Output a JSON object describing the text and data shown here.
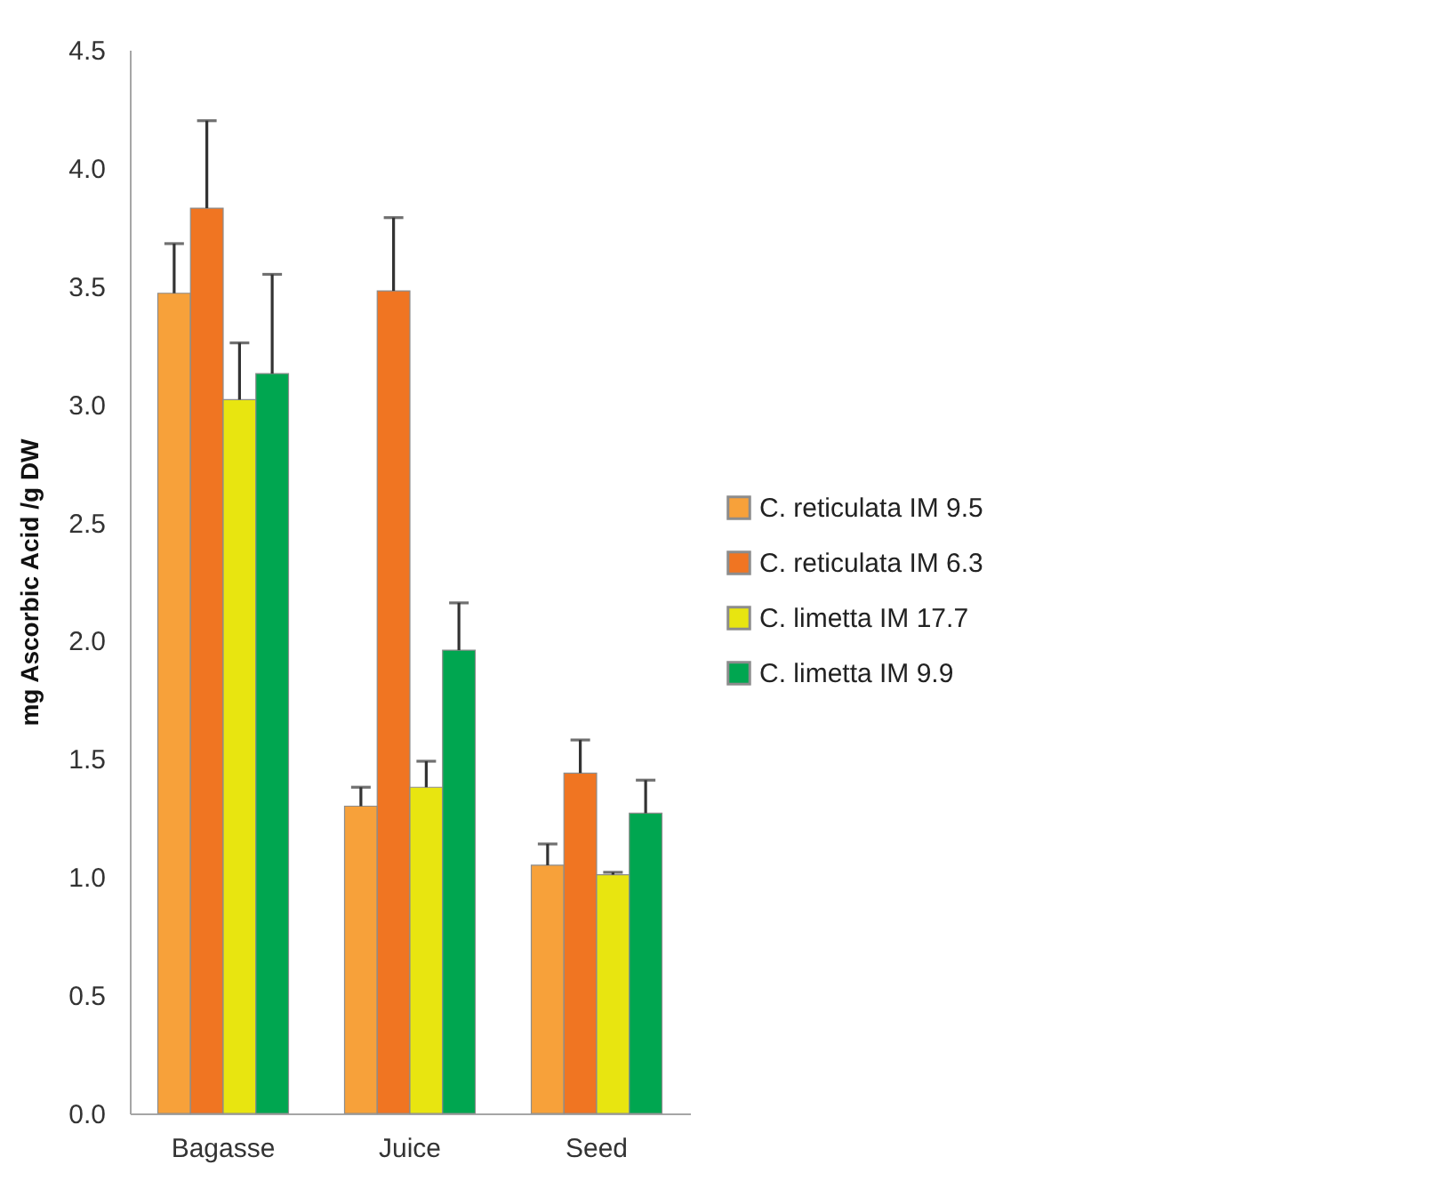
{
  "chart_data": {
    "type": "bar",
    "ylabel": "mg Ascorbic Acid /g DW",
    "categories": [
      "Bagasse",
      "Juice",
      "Seed"
    ],
    "series": [
      {
        "name": "C. reticulata IM 9.5",
        "color": "#f7a13a",
        "values": [
          3.47,
          1.3,
          1.05
        ],
        "errors": [
          [
            3.47,
            3.68
          ],
          [
            1.3,
            1.38
          ],
          [
            1.05,
            1.14
          ]
        ]
      },
      {
        "name": "C. reticulata IM 6.3",
        "color": "#f07522",
        "values": [
          3.83,
          3.48,
          1.44
        ],
        "errors": [
          [
            3.83,
            4.2
          ],
          [
            3.48,
            3.79
          ],
          [
            1.44,
            1.58
          ]
        ]
      },
      {
        "name": "C. limetta IM 17.7",
        "color": "#e8e510",
        "values": [
          3.02,
          1.38,
          1.01
        ],
        "errors": [
          [
            3.02,
            3.26
          ],
          [
            1.38,
            1.49
          ],
          [
            1.01,
            1.02
          ]
        ]
      },
      {
        "name": "C. limetta IM 9.9",
        "color": "#00a650",
        "values": [
          3.13,
          1.96,
          1.27
        ],
        "errors": [
          [
            3.13,
            3.55
          ],
          [
            1.96,
            2.16
          ],
          [
            1.27,
            1.41
          ]
        ]
      }
    ],
    "ylim": [
      0,
      4.5
    ],
    "yticks": [
      {
        "value": 0,
        "label": "0.0"
      },
      {
        "value": 0.5,
        "label": "0.5"
      },
      {
        "value": 1,
        "label": "1.0"
      },
      {
        "value": 1.5,
        "label": "1.5"
      },
      {
        "value": 2,
        "label": "2.0"
      },
      {
        "value": 2.5,
        "label": "2.5"
      },
      {
        "value": 3,
        "label": "3.0"
      },
      {
        "value": 3.5,
        "label": "3.5"
      },
      {
        "value": 4,
        "label": "4.0"
      },
      {
        "value": 4.5,
        "label": "4.5"
      }
    ],
    "grid": false,
    "legend": "right"
  }
}
